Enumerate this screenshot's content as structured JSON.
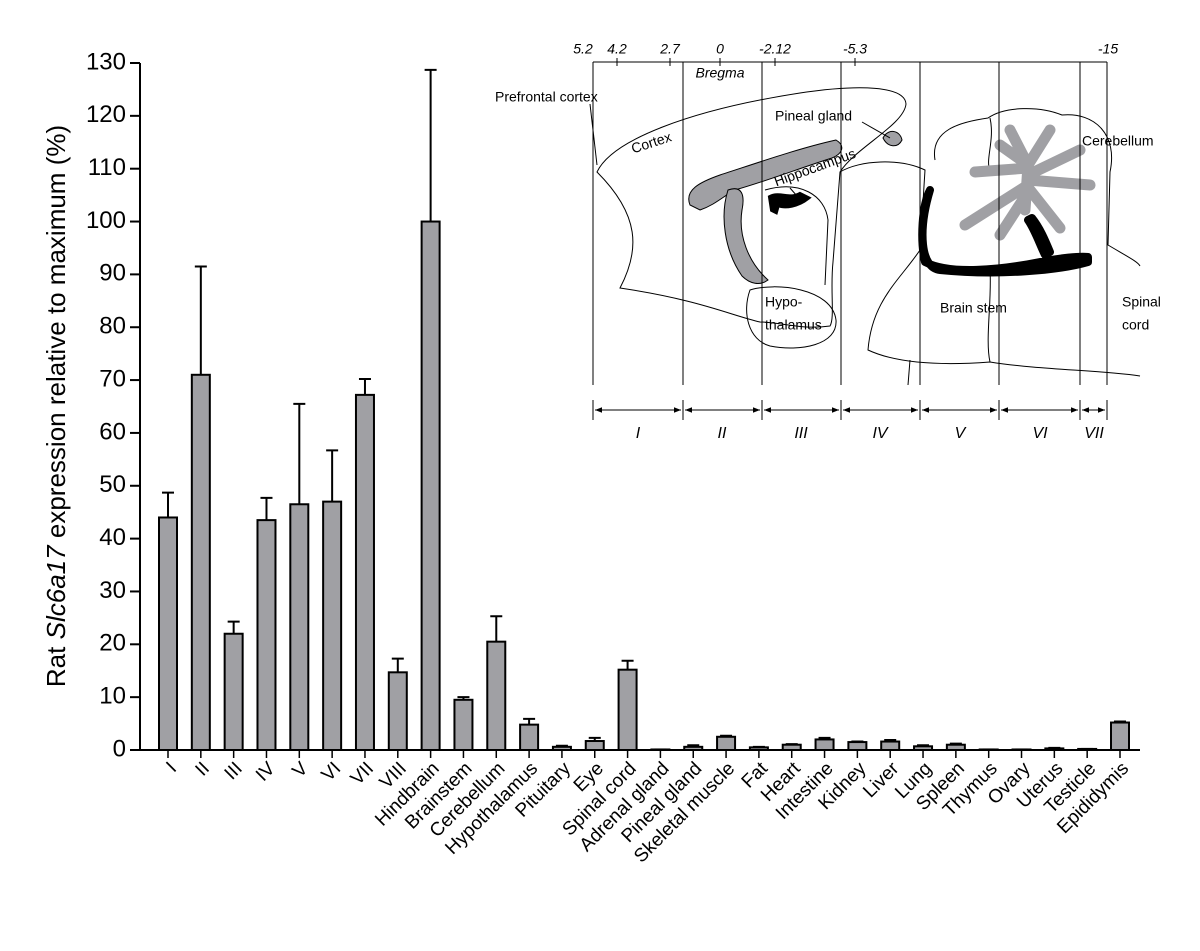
{
  "chart_data": {
    "type": "bar",
    "y_label": [
      "Rat",
      "Slc6a17",
      "expression relative to maximum (%)"
    ],
    "categories": [
      "I",
      "II",
      "III",
      "IV",
      "V",
      "VI",
      "VII",
      "VIII",
      "Hindbrain",
      "Brainstem",
      "Cerebellum",
      "Hypothalamus",
      "Pituitary",
      "Eye",
      "Spinal cord",
      "Adrenal gland",
      "Pineal gland",
      "Skeletal muscle",
      "Fat",
      "Heart",
      "Intestine",
      "Kidney",
      "Liver",
      "Lung",
      "Spleen",
      "Thymus",
      "Ovary",
      "Uterus",
      "Testicle",
      "Epididymis"
    ],
    "series": [
      {
        "color": "#a0a0a4",
        "values": [
          44,
          71,
          22,
          43.5,
          46.5,
          47,
          67.2,
          14.7,
          100,
          9.5,
          20.5,
          4.8,
          0.6,
          1.7,
          15.2,
          0.1,
          0.6,
          2.5,
          0.5,
          1,
          2,
          1.5,
          1.6,
          0.7,
          1,
          0.1,
          0.1,
          0.3,
          0.2,
          5.2
        ],
        "errors": [
          4.7,
          20.5,
          2.3,
          4.2,
          19,
          9.7,
          3,
          2.6,
          28.7,
          0.5,
          4.8,
          1.1,
          0.2,
          0.6,
          1.7,
          0,
          0.3,
          0.2,
          0.1,
          0.1,
          0.3,
          0.1,
          0.3,
          0.2,
          0.2,
          0,
          0,
          0.1,
          0,
          0.2
        ]
      }
    ],
    "ylim": [
      0,
      130
    ],
    "yticks": [
      0,
      10,
      20,
      30,
      40,
      50,
      60,
      70,
      80,
      90,
      100,
      110,
      120,
      130
    ]
  },
  "inset": {
    "bregma_ticks": [
      "5.2",
      "4.2",
      "2.7",
      "0",
      "-2.12",
      "-5.3",
      "-15"
    ],
    "bregma_label": "Bregma",
    "prefrontal_cortex": "Prefrontal cortex",
    "cortex": "Cortex",
    "pineal_gland": "Pineal gland",
    "hippocampus": "Hippocampus",
    "cerebellum": "Cerebellum",
    "hypothalamus": [
      "Hypo-",
      "thalamus"
    ],
    "brain_stem": "Brain stem",
    "spinal_cord": [
      "Spinal",
      "cord"
    ],
    "sections": [
      "I",
      "II",
      "III",
      "IV",
      "V",
      "VI",
      "VII"
    ]
  }
}
